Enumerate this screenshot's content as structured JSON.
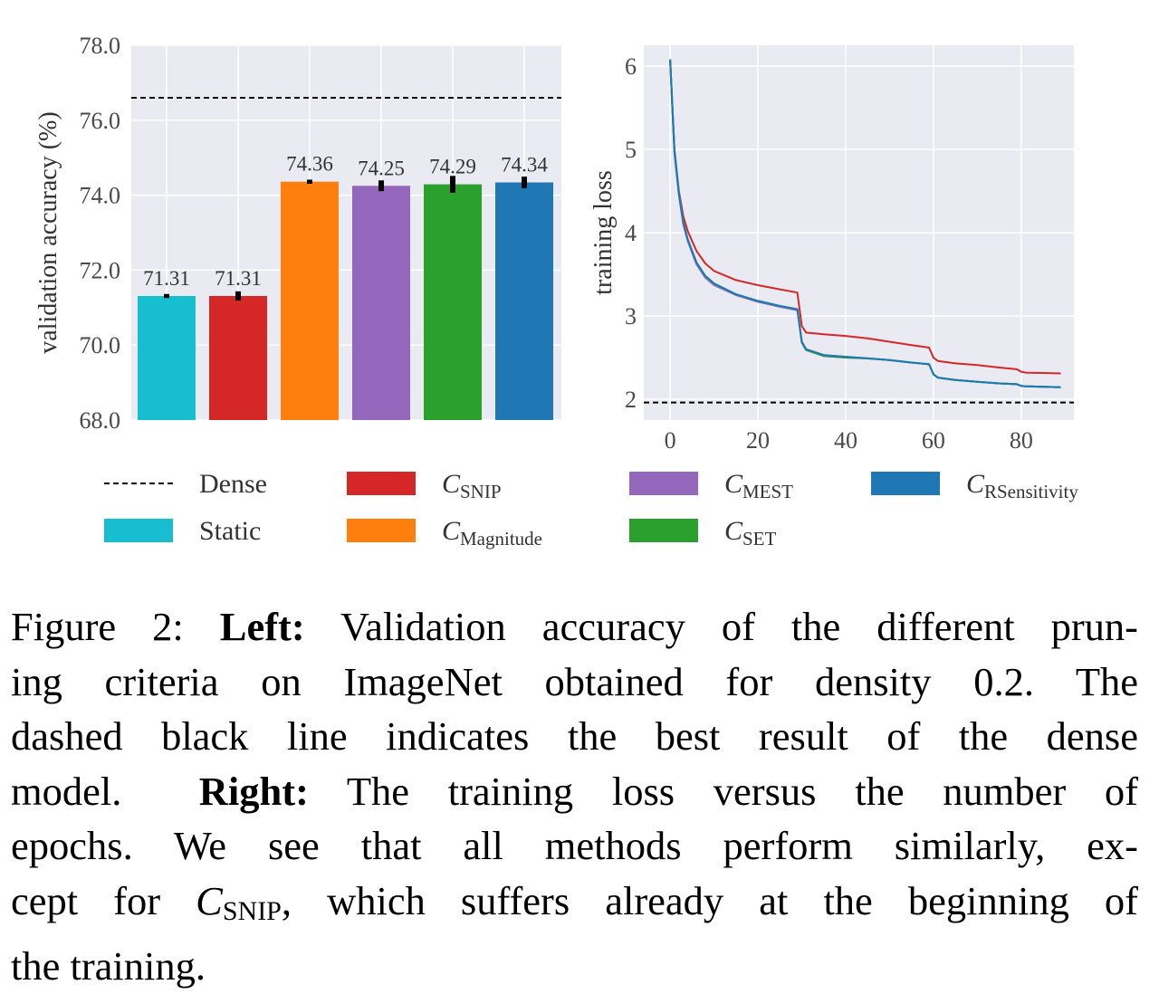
{
  "chart_data": [
    {
      "type": "bar",
      "title": "",
      "xlabel": "",
      "ylabel": "validation accuracy (%)",
      "ylim": [
        68.0,
        78.0
      ],
      "yticks": [
        "68.0",
        "70.0",
        "72.0",
        "74.0",
        "76.0",
        "78.0"
      ],
      "grid": true,
      "categories": [
        "Static",
        "C_SNIP",
        "C_Magnitude",
        "C_MEST",
        "C_SET",
        "C_RSensitivity"
      ],
      "values": [
        71.31,
        71.31,
        74.36,
        74.25,
        74.29,
        74.34
      ],
      "value_labels": [
        "71.31",
        "71.31",
        "74.36",
        "74.25",
        "74.29",
        "74.34"
      ],
      "errors": [
        0.03,
        0.1,
        0.03,
        0.12,
        0.2,
        0.13
      ],
      "colors": [
        "#17becf",
        "#d62728",
        "#ff7f0e",
        "#9467bd",
        "#2ca02c",
        "#1f77b4"
      ],
      "reference_line": {
        "name": "Dense",
        "value": 76.6,
        "style": "dashed",
        "color": "#000000"
      }
    },
    {
      "type": "line",
      "title": "",
      "xlabel": "",
      "ylabel": "training loss",
      "xlim": [
        -6,
        92
      ],
      "ylim": [
        1.75,
        6.25
      ],
      "xticks": [
        "0",
        "20",
        "40",
        "60",
        "80"
      ],
      "yticks": [
        "2",
        "3",
        "4",
        "5",
        "6"
      ],
      "grid": true,
      "x": [
        0,
        1,
        2,
        3,
        4,
        6,
        8,
        10,
        15,
        20,
        25,
        29,
        30,
        31,
        35,
        40,
        45,
        50,
        55,
        59,
        60,
        61,
        65,
        70,
        75,
        79,
        80,
        81,
        85,
        89
      ],
      "series": [
        {
          "name": "C_SNIP",
          "color": "#d62728",
          "values": [
            6.08,
            5.0,
            4.5,
            4.2,
            4.02,
            3.78,
            3.63,
            3.54,
            3.43,
            3.37,
            3.32,
            3.28,
            2.88,
            2.8,
            2.78,
            2.76,
            2.73,
            2.69,
            2.65,
            2.62,
            2.5,
            2.46,
            2.43,
            2.41,
            2.38,
            2.36,
            2.33,
            2.32,
            2.315,
            2.31
          ]
        },
        {
          "name": "C_MEST",
          "color": "#9467bd",
          "values": [
            6.08,
            4.95,
            4.45,
            4.1,
            3.9,
            3.62,
            3.46,
            3.37,
            3.25,
            3.17,
            3.11,
            3.07,
            2.68,
            2.59,
            2.52,
            2.5,
            2.49,
            2.47,
            2.44,
            2.42,
            2.3,
            2.26,
            2.23,
            2.21,
            2.19,
            2.18,
            2.16,
            2.155,
            2.15,
            2.145
          ]
        },
        {
          "name": "C_Magnitude",
          "color": "#ff7f0e",
          "values": [
            6.08,
            4.97,
            4.47,
            4.12,
            3.92,
            3.64,
            3.48,
            3.39,
            3.26,
            3.18,
            3.12,
            3.08,
            2.69,
            2.6,
            2.53,
            2.51,
            2.49,
            2.47,
            2.44,
            2.42,
            2.3,
            2.26,
            2.23,
            2.21,
            2.19,
            2.18,
            2.16,
            2.155,
            2.15,
            2.145
          ]
        },
        {
          "name": "C_SET",
          "color": "#2ca02c",
          "values": [
            6.08,
            4.97,
            4.47,
            4.12,
            3.92,
            3.64,
            3.48,
            3.39,
            3.26,
            3.18,
            3.12,
            3.08,
            2.68,
            2.59,
            2.52,
            2.5,
            2.49,
            2.47,
            2.44,
            2.42,
            2.3,
            2.26,
            2.23,
            2.21,
            2.19,
            2.18,
            2.16,
            2.155,
            2.15,
            2.145
          ]
        },
        {
          "name": "Static",
          "color": "#17becf",
          "values": [
            6.08,
            4.97,
            4.47,
            4.12,
            3.92,
            3.64,
            3.48,
            3.39,
            3.26,
            3.18,
            3.12,
            3.08,
            2.69,
            2.6,
            2.53,
            2.51,
            2.49,
            2.47,
            2.44,
            2.42,
            2.3,
            2.26,
            2.23,
            2.21,
            2.19,
            2.18,
            2.16,
            2.155,
            2.15,
            2.145
          ]
        },
        {
          "name": "C_RSensitivity",
          "color": "#1f77b4",
          "values": [
            6.08,
            4.97,
            4.47,
            4.12,
            3.92,
            3.64,
            3.48,
            3.39,
            3.26,
            3.18,
            3.12,
            3.08,
            2.69,
            2.6,
            2.53,
            2.51,
            2.49,
            2.47,
            2.44,
            2.42,
            2.3,
            2.26,
            2.23,
            2.21,
            2.19,
            2.18,
            2.16,
            2.155,
            2.15,
            2.145
          ]
        }
      ],
      "reference_line": {
        "name": "Dense",
        "value": 1.96,
        "style": "dashed",
        "color": "#000000"
      }
    }
  ],
  "legend": {
    "placement": "below",
    "items": [
      {
        "kind": "dashed",
        "letter": "",
        "text": "Dense",
        "color": "#000000"
      },
      {
        "kind": "patch",
        "letter": "",
        "text": "Static",
        "color": "#17becf"
      },
      {
        "kind": "patch",
        "letter": "C",
        "text": "SNIP",
        "color": "#d62728"
      },
      {
        "kind": "patch",
        "letter": "C",
        "text": "Magnitude",
        "color": "#ff7f0e"
      },
      {
        "kind": "patch",
        "letter": "C",
        "text": "MEST",
        "color": "#9467bd"
      },
      {
        "kind": "patch",
        "letter": "C",
        "text": "SET",
        "color": "#2ca02c"
      },
      {
        "kind": "patch",
        "letter": "C",
        "text": "RSensitivity",
        "color": "#1f77b4"
      }
    ]
  },
  "caption": {
    "figure_label": "Figure 2:",
    "left_label": "Left:",
    "text_1a": "Validation accuracy of the different prun-",
    "text_1b": "ing criteria on ImageNet obtained for density 0.2. The",
    "text_1c": "dashed black line indicates the best result of the dense",
    "text_1d": "model.",
    "right_label": "Right:",
    "text_2a": "The training loss versus the number of",
    "text_2b": "epochs. We see that all methods perform similarly, ex-",
    "text_2c": "cept for",
    "snip_letter": "C",
    "snip_sub": "SNIP",
    "text_2d": ", which suffers already at the beginning of",
    "text_2e": "the training."
  }
}
